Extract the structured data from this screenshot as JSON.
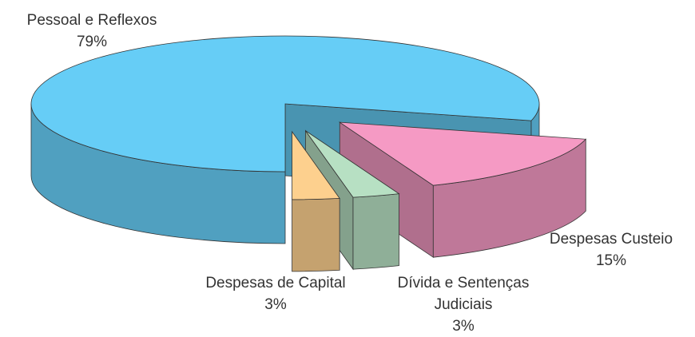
{
  "chart_data": {
    "type": "pie3d",
    "categories": [
      "Pessoal e Reflexos",
      "Despesas Custeio",
      "Dívida e Sentenças Judiciais",
      "Despesas de Capital"
    ],
    "values": [
      79,
      15,
      3,
      3
    ],
    "value_labels": [
      "79%",
      "15%",
      "3%",
      "3%"
    ],
    "colors": [
      "#66cdf6",
      "#f59ac4",
      "#b7e0c3",
      "#fdd08e"
    ]
  }
}
